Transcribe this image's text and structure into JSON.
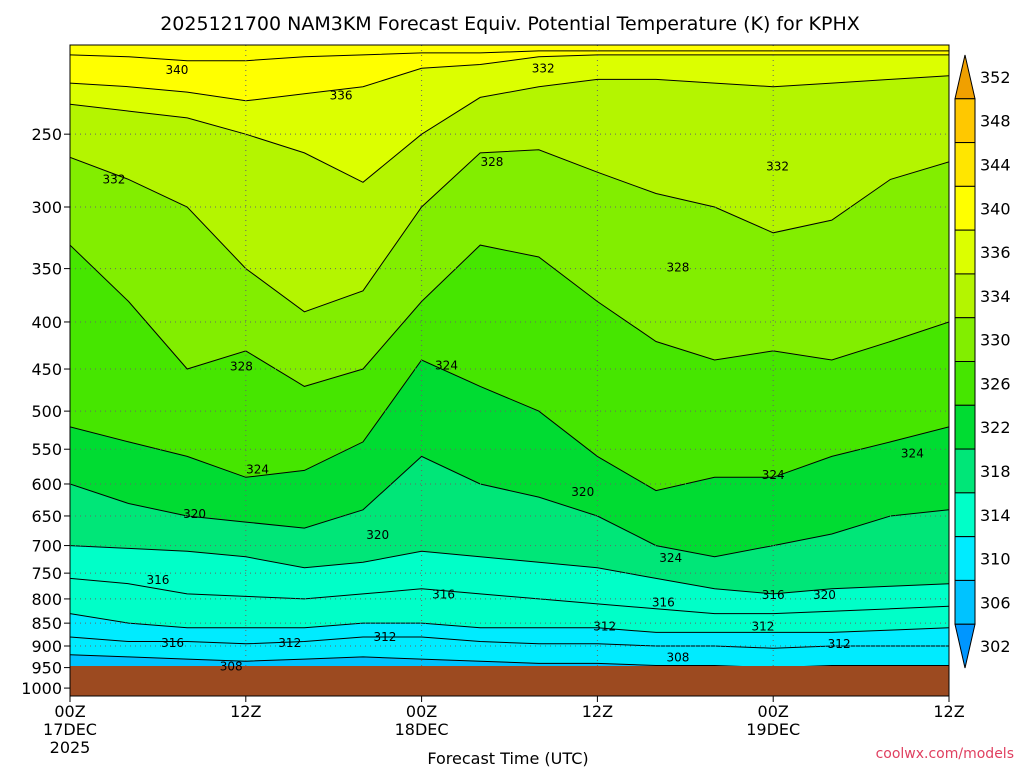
{
  "chart_data": {
    "type": "heatmap",
    "title": "2025121700 NAM3KM Forecast Equiv. Potential Temperature (K) for KPHX",
    "xlabel": "Forecast Time (UTC)",
    "ylabel": "",
    "x_ticks": [
      {
        "label": "00Z",
        "sub": "17DEC",
        "sub2": "2025",
        "hour": 0
      },
      {
        "label": "12Z",
        "sub": "",
        "sub2": "",
        "hour": 12
      },
      {
        "label": "00Z",
        "sub": "18DEC",
        "sub2": "",
        "hour": 24
      },
      {
        "label": "12Z",
        "sub": "",
        "sub2": "",
        "hour": 36
      },
      {
        "label": "00Z",
        "sub": "19DEC",
        "sub2": "",
        "hour": 48
      },
      {
        "label": "12Z",
        "sub": "",
        "sub2": "",
        "hour": 60
      }
    ],
    "xlim": [
      0,
      60
    ],
    "y_ticks": [
      "250",
      "300",
      "350",
      "400",
      "450",
      "500",
      "550",
      "600",
      "650",
      "700",
      "750",
      "800",
      "850",
      "900",
      "950",
      "1000"
    ],
    "ylim_hpa": [
      1020,
      200
    ],
    "colorbar": {
      "labels": [
        "352",
        "348",
        "344",
        "340",
        "336",
        "334",
        "330",
        "326",
        "322",
        "318",
        "314",
        "310",
        "306",
        "302"
      ],
      "colors": [
        "#f0a000",
        "#ffc800",
        "#ffe600",
        "#ffff00",
        "#dcff00",
        "#b4f500",
        "#82ee00",
        "#46e600",
        "#00dc32",
        "#00e678",
        "#00ffc8",
        "#00ebff",
        "#00c3ff",
        "#0096ff"
      ]
    },
    "contour_labels": [
      {
        "text": "340",
        "hour": 7.3,
        "hpa": 213
      },
      {
        "text": "336",
        "hour": 18.5,
        "hpa": 227
      },
      {
        "text": "332",
        "hour": 32.3,
        "hpa": 212
      },
      {
        "text": "332",
        "hour": 3.0,
        "hpa": 280
      },
      {
        "text": "328",
        "hour": 28.8,
        "hpa": 268
      },
      {
        "text": "332",
        "hour": 48.3,
        "hpa": 271
      },
      {
        "text": "328",
        "hour": 41.5,
        "hpa": 349
      },
      {
        "text": "328",
        "hour": 11.7,
        "hpa": 447
      },
      {
        "text": "324",
        "hour": 25.7,
        "hpa": 446
      },
      {
        "text": "324",
        "hour": 12.8,
        "hpa": 579
      },
      {
        "text": "324",
        "hour": 48.0,
        "hpa": 587
      },
      {
        "text": "324",
        "hour": 57.5,
        "hpa": 556
      },
      {
        "text": "320",
        "hour": 8.5,
        "hpa": 647
      },
      {
        "text": "320",
        "hour": 35.0,
        "hpa": 612
      },
      {
        "text": "320",
        "hour": 21.0,
        "hpa": 682
      },
      {
        "text": "324",
        "hour": 41.0,
        "hpa": 722
      },
      {
        "text": "316",
        "hour": 6.0,
        "hpa": 763
      },
      {
        "text": "316",
        "hour": 25.5,
        "hpa": 791
      },
      {
        "text": "316",
        "hour": 40.5,
        "hpa": 807
      },
      {
        "text": "316",
        "hour": 48.0,
        "hpa": 792
      },
      {
        "text": "320",
        "hour": 51.5,
        "hpa": 792
      },
      {
        "text": "312",
        "hour": 36.5,
        "hpa": 857
      },
      {
        "text": "312",
        "hour": 47.3,
        "hpa": 857
      },
      {
        "text": "312",
        "hour": 21.5,
        "hpa": 880
      },
      {
        "text": "312",
        "hour": 15.0,
        "hpa": 893
      },
      {
        "text": "316",
        "hour": 7.0,
        "hpa": 893
      },
      {
        "text": "312",
        "hour": 52.5,
        "hpa": 896
      },
      {
        "text": "308",
        "hour": 41.5,
        "hpa": 926
      },
      {
        "text": "308",
        "hour": 11.0,
        "hpa": 948
      }
    ],
    "credit": "coolwx.com/models"
  }
}
